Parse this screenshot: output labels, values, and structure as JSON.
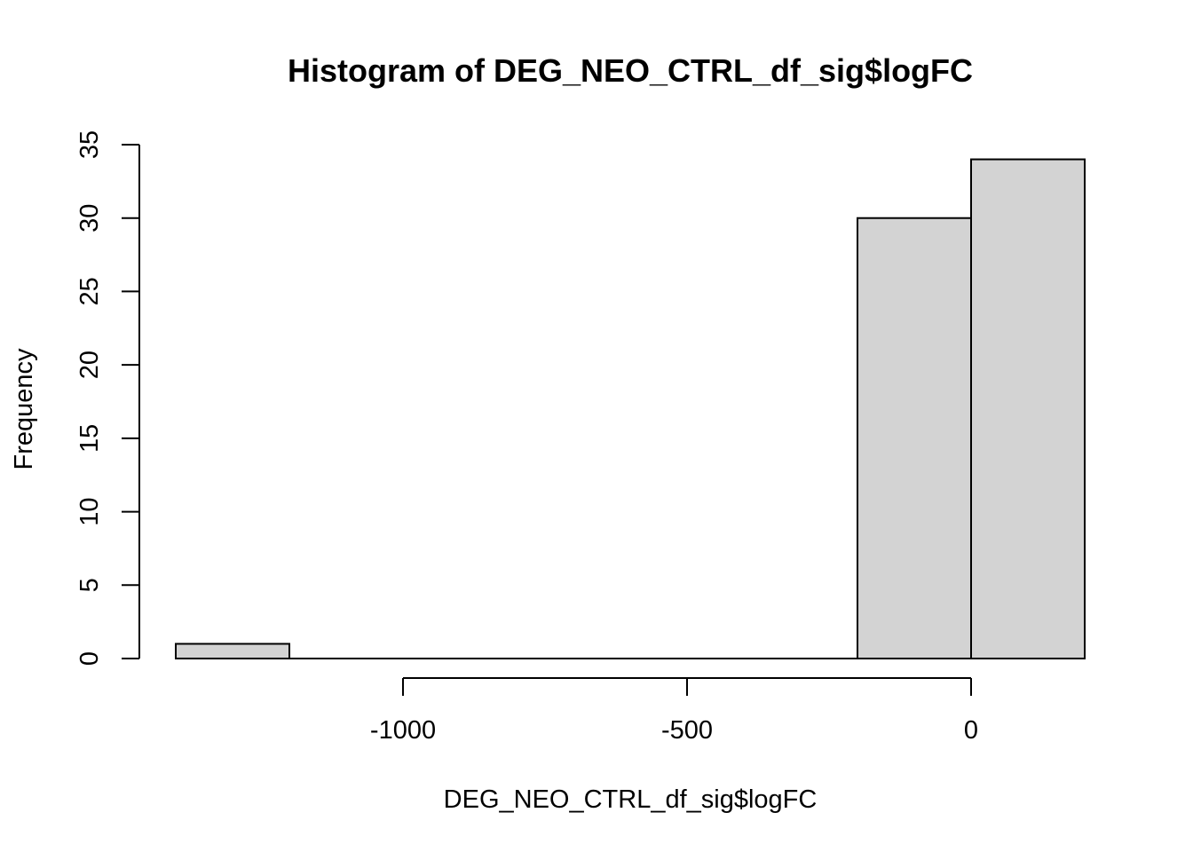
{
  "chart_data": {
    "type": "bar",
    "title": "Histogram of DEG_NEO_CTRL_df_sig$logFC",
    "xlabel": "DEG_NEO_CTRL_df_sig$logFC",
    "ylabel": "Frequency",
    "bins": [
      {
        "x0": -1400,
        "x1": -1200,
        "count": 1
      },
      {
        "x0": -1200,
        "x1": -1000,
        "count": 0
      },
      {
        "x0": -1000,
        "x1": -800,
        "count": 0
      },
      {
        "x0": -800,
        "x1": -600,
        "count": 0
      },
      {
        "x0": -600,
        "x1": -400,
        "count": 0
      },
      {
        "x0": -400,
        "x1": -200,
        "count": 0
      },
      {
        "x0": -200,
        "x1": 0,
        "count": 30
      },
      {
        "x0": 0,
        "x1": 200,
        "count": 34
      }
    ],
    "xlim": [
      -1400,
      200
    ],
    "ylim": [
      0,
      35
    ],
    "x_ticks": [
      -1000,
      -500,
      0
    ],
    "x_tick_labels": [
      "-1000",
      "-500",
      "0"
    ],
    "y_ticks": [
      0,
      5,
      10,
      15,
      20,
      25,
      30,
      35
    ],
    "y_tick_labels": [
      "0",
      "5",
      "10",
      "15",
      "20",
      "25",
      "30",
      "35"
    ],
    "grid": false,
    "colors": {
      "bar_fill": "#d3d3d3",
      "bar_stroke": "#000000"
    }
  }
}
